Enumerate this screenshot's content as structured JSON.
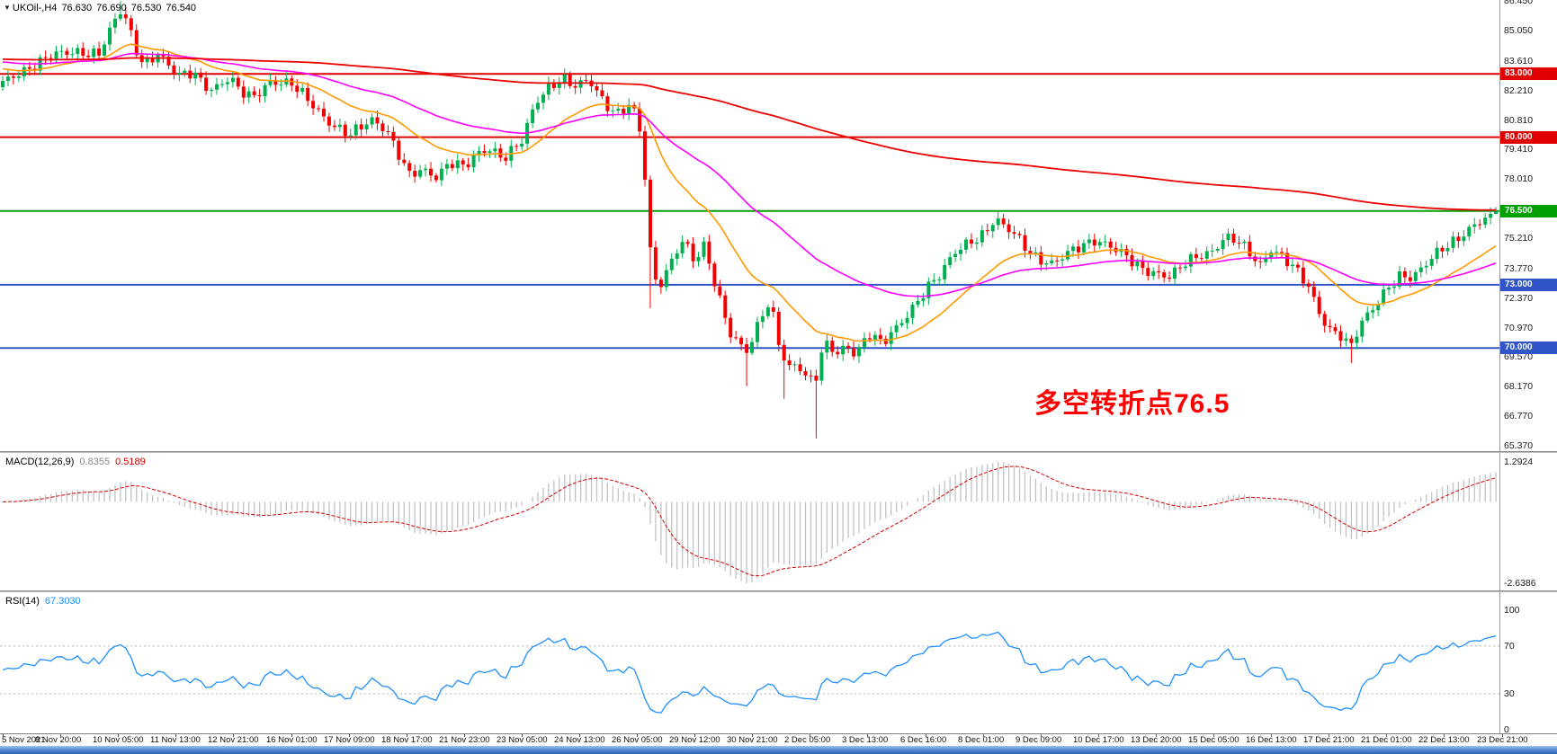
{
  "icons": {
    "symbol_marker": "▼"
  },
  "symbol_line": {
    "marker": "▼",
    "symbol": "UKOil-,H4",
    "open": "76.630",
    "high": "76.690",
    "low": "76.530",
    "close": "76.540"
  },
  "chart_data": {
    "type": "candlestick",
    "title": "UKOil-,H4",
    "ohlc_display": {
      "open": "76.630",
      "high": "76.690",
      "low": "76.530",
      "close": "76.540"
    },
    "ylim": [
      65.37,
      86.5
    ],
    "grid": false,
    "legend": "none",
    "up_color": "#00b050",
    "down_color": "#f20000",
    "price_axis_labels": [
      "86.450",
      "85.050",
      "83.610",
      "82.210",
      "80.810",
      "79.410",
      "78.010",
      "76.610",
      "75.210",
      "73.770",
      "72.370",
      "70.970",
      "69.570",
      "68.170",
      "66.770",
      "65.370"
    ],
    "horizontal_levels": [
      {
        "price": 83.0,
        "label": "83.000",
        "color": "#e00000"
      },
      {
        "price": 80.0,
        "label": "80.000",
        "color": "#e00000"
      },
      {
        "price": 76.5,
        "label": "76.500",
        "color": "#00a000"
      },
      {
        "price": 73.0,
        "label": "73.000",
        "color": "#2f55c8"
      },
      {
        "price": 70.0,
        "label": "70.000",
        "color": "#2f55c8"
      }
    ],
    "annotation": {
      "text": "多空转折点76.5",
      "color": "#ff0000"
    },
    "candle_count": 280,
    "price_anchors": [
      [
        0,
        82.4
      ],
      [
        25,
        83.2
      ],
      [
        50,
        83.7
      ],
      [
        69,
        83.9
      ],
      [
        90,
        84.1
      ],
      [
        110,
        84.0
      ],
      [
        125,
        85.2
      ],
      [
        133,
        85.9
      ],
      [
        141,
        85.5
      ],
      [
        150,
        84.3
      ],
      [
        160,
        83.5
      ],
      [
        175,
        84.0
      ],
      [
        197,
        82.8
      ],
      [
        215,
        83.1
      ],
      [
        235,
        82.3
      ],
      [
        255,
        82.7
      ],
      [
        268,
        82.1
      ],
      [
        280,
        81.9
      ],
      [
        300,
        82.7
      ],
      [
        325,
        82.4
      ],
      [
        350,
        81.5
      ],
      [
        370,
        80.6
      ],
      [
        389,
        80.0
      ],
      [
        400,
        80.4
      ],
      [
        415,
        80.9
      ],
      [
        430,
        80.4
      ],
      [
        445,
        79.0
      ],
      [
        455,
        78.1
      ],
      [
        470,
        78.4
      ],
      [
        485,
        78.2
      ],
      [
        500,
        78.9
      ],
      [
        517,
        78.5
      ],
      [
        530,
        79.1
      ],
      [
        545,
        79.5
      ],
      [
        560,
        79.1
      ],
      [
        581,
        79.8
      ],
      [
        595,
        81.5
      ],
      [
        610,
        82.4
      ],
      [
        625,
        82.9
      ],
      [
        640,
        82.4
      ],
      [
        655,
        82.6
      ],
      [
        670,
        81.7
      ],
      [
        685,
        81.2
      ],
      [
        700,
        81.6
      ],
      [
        709,
        80.9
      ],
      [
        716,
        78.6
      ],
      [
        723,
        74.5
      ],
      [
        730,
        72.8
      ],
      [
        740,
        73.5
      ],
      [
        752,
        74.8
      ],
      [
        762,
        75.2
      ],
      [
        772,
        74.0
      ],
      [
        782,
        74.8
      ],
      [
        792,
        73.4
      ],
      [
        802,
        72.0
      ],
      [
        812,
        70.8
      ],
      [
        822,
        70.3
      ],
      [
        831,
        69.9
      ],
      [
        838,
        70.5
      ],
      [
        846,
        71.4
      ],
      [
        856,
        72.1
      ],
      [
        866,
        70.2
      ],
      [
        876,
        69.1
      ],
      [
        886,
        69.4
      ],
      [
        896,
        68.7
      ],
      [
        906,
        68.3
      ],
      [
        912,
        69.6
      ],
      [
        921,
        70.1
      ],
      [
        931,
        69.7
      ],
      [
        941,
        70.2
      ],
      [
        951,
        69.8
      ],
      [
        966,
        70.7
      ],
      [
        981,
        70.1
      ],
      [
        996,
        70.9
      ],
      [
        1011,
        71.8
      ],
      [
        1029,
        72.8
      ],
      [
        1046,
        73.4
      ],
      [
        1061,
        74.5
      ],
      [
        1076,
        75.1
      ],
      [
        1093,
        75.4
      ],
      [
        1106,
        76.0
      ],
      [
        1116,
        75.7
      ],
      [
        1131,
        75.3
      ],
      [
        1146,
        74.6
      ],
      [
        1157,
        74.2
      ],
      [
        1171,
        73.9
      ],
      [
        1186,
        74.4
      ],
      [
        1201,
        74.9
      ],
      [
        1216,
        75.2
      ],
      [
        1226,
        75.0
      ],
      [
        1236,
        74.7
      ],
      [
        1251,
        74.3
      ],
      [
        1266,
        73.9
      ],
      [
        1286,
        73.6
      ],
      [
        1301,
        73.3
      ],
      [
        1316,
        73.9
      ],
      [
        1331,
        74.4
      ],
      [
        1349,
        74.7
      ],
      [
        1361,
        75.2
      ],
      [
        1376,
        75.0
      ],
      [
        1391,
        74.4
      ],
      [
        1401,
        74.0
      ],
      [
        1413,
        74.8
      ],
      [
        1426,
        74.3
      ],
      [
        1441,
        73.6
      ],
      [
        1456,
        72.8
      ],
      [
        1466,
        71.8
      ],
      [
        1477,
        71.0
      ],
      [
        1491,
        70.6
      ],
      [
        1501,
        69.9
      ],
      [
        1511,
        70.9
      ],
      [
        1521,
        71.6
      ],
      [
        1531,
        72.2
      ],
      [
        1541,
        72.9
      ],
      [
        1556,
        73.4
      ],
      [
        1571,
        73.2
      ],
      [
        1586,
        74.0
      ],
      [
        1601,
        74.8
      ],
      [
        1616,
        75.1
      ],
      [
        1631,
        75.4
      ],
      [
        1641,
        75.8
      ],
      [
        1649,
        76.0
      ],
      [
        1656,
        76.3
      ],
      [
        1663,
        76.5
      ]
    ],
    "wick_overrides": {
      "22": {
        "high": 86.45
      },
      "121": {
        "low": 71.9
      },
      "139": {
        "low": 68.2
      },
      "146": {
        "low": 67.6
      },
      "152": {
        "low": 65.72
      },
      "252": {
        "low": 69.3
      },
      "279": {
        "high": 76.69,
        "low": 76.43
      }
    },
    "moving_averages": [
      {
        "name": "ma-fast",
        "color": "#ff9900",
        "period": 21,
        "seed": 83.3,
        "width": 1.6
      },
      {
        "name": "ma-mid",
        "color": "#ff00ff",
        "period": 55,
        "seed": 83.6,
        "width": 1.6
      },
      {
        "name": "ma-slow",
        "color": "#ee0000",
        "period": 300,
        "seed": 83.7,
        "width": 1.8
      }
    ],
    "macd": {
      "name": "MACD(12,26,9)",
      "value_main": "0.8355",
      "value_signal": "0.5189",
      "scale_max": "1.2924",
      "scale_min": "-2.6386",
      "fast": 12,
      "slow": 26,
      "signal": 9,
      "hist_color": "#c2c2c2",
      "signal_color": "#d40000"
    },
    "rsi": {
      "name": "RSI(14)",
      "value": "67.3030",
      "period": 14,
      "color": "#1e90ff",
      "levels": [
        100,
        70,
        30,
        0
      ],
      "dashed_levels": [
        70,
        30
      ]
    },
    "time_labels": [
      "5 Nov 2021",
      "8 Nov 20:00",
      "10 Nov 05:00",
      "11 Nov 13:00",
      "12 Nov 21:00",
      "16 Nov 01:00",
      "17 Nov 09:00",
      "18 Nov 17:00",
      "21 Nov 23:00",
      "23 Nov 05:00",
      "24 Nov 13:00",
      "26 Nov 05:00",
      "29 Nov 12:00",
      "30 Nov 21:00",
      "2 Dec 05:00",
      "3 Dec 13:00",
      "6 Dec 16:00",
      "8 Dec 01:00",
      "9 Dec 09:00",
      "10 Dec 17:00",
      "13 Dec 20:00",
      "15 Dec 05:00",
      "16 Dec 13:00",
      "17 Dec 21:00",
      "21 Dec 01:00",
      "22 Dec 13:00",
      "23 Dec 21:00"
    ]
  }
}
